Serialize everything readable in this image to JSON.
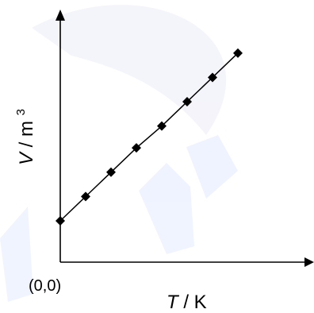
{
  "chart_data": {
    "type": "line",
    "title": "",
    "xlabel": {
      "symbol": "T",
      "unit": "/ K"
    },
    "ylabel": {
      "symbol": "V",
      "unit": "/ m",
      "unit_exponent": "3"
    },
    "origin_label": "(0,0)",
    "axes_visible_only": true,
    "grid": false,
    "legend": "none",
    "colors": {
      "line": "#000000",
      "marker": "#000000",
      "axis": "#000000"
    },
    "marker": "diamond",
    "xlim": [
      0,
      10
    ],
    "ylim": [
      0,
      10
    ],
    "series": [
      {
        "x": [
          0.0,
          1.0,
          2.0,
          3.0,
          4.0,
          5.0,
          6.0,
          7.0
        ],
        "y": [
          1.7,
          2.7,
          3.7,
          4.7,
          5.6,
          6.6,
          7.6,
          8.6
        ]
      }
    ]
  }
}
